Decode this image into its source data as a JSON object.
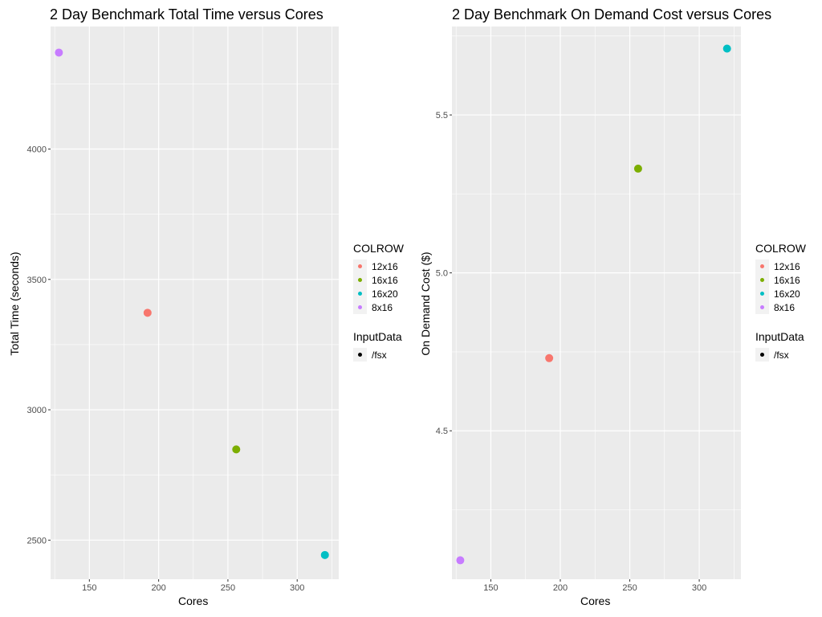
{
  "chart_data": [
    {
      "type": "scatter",
      "title": "2 Day Benchmark Total Time versus Cores",
      "xlabel": "Cores",
      "ylabel": "Total Time (seconds)",
      "xlim": [
        122,
        330
      ],
      "ylim": [
        2350,
        4470
      ],
      "xticks": [
        150,
        200,
        250,
        300
      ],
      "yticks": [
        2500,
        3000,
        3500,
        4000
      ],
      "grid": true,
      "legend_placement": "right",
      "legend": {
        "color_title": "COLROW",
        "color_entries": [
          "12x16",
          "16x16",
          "16x20",
          "8x16"
        ],
        "shape_title": "InputData",
        "shape_entries": [
          "/fsx"
        ]
      },
      "points": [
        {
          "x": 128,
          "y": 4370,
          "group": "8x16"
        },
        {
          "x": 192,
          "y": 3372,
          "group": "12x16"
        },
        {
          "x": 256,
          "y": 2848,
          "group": "16x16"
        },
        {
          "x": 320,
          "y": 2443,
          "group": "16x20"
        }
      ]
    },
    {
      "type": "scatter",
      "title": "2 Day Benchmark On Demand Cost versus Cores",
      "xlabel": "Cores",
      "ylabel": "On Demand Cost ($)",
      "xlim": [
        122,
        330
      ],
      "ylim": [
        4.03,
        5.78
      ],
      "xticks": [
        150,
        200,
        250,
        300
      ],
      "yticks": [
        4.5,
        5.0,
        5.5
      ],
      "grid": true,
      "legend_placement": "right",
      "legend": {
        "color_title": "COLROW",
        "color_entries": [
          "12x16",
          "16x16",
          "16x20",
          "8x16"
        ],
        "shape_title": "InputData",
        "shape_entries": [
          "/fsx"
        ]
      },
      "points": [
        {
          "x": 128,
          "y": 4.09,
          "group": "8x16"
        },
        {
          "x": 192,
          "y": 4.73,
          "group": "12x16"
        },
        {
          "x": 256,
          "y": 5.33,
          "group": "16x16"
        },
        {
          "x": 320,
          "y": 5.71,
          "group": "16x20"
        }
      ]
    }
  ],
  "colors": {
    "12x16": "#F8766D",
    "16x16": "#7CAE00",
    "16x20": "#00BFC4",
    "8x16": "#C77CFF",
    "panel": "#EBEBEB",
    "grid": "#FFFFFF",
    "legend_key": "#F2F2F2",
    "shape_dot": "#000000"
  }
}
